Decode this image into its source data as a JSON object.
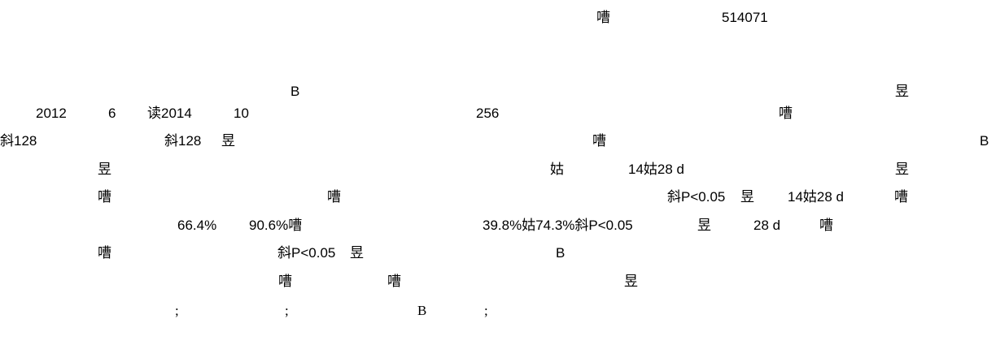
{
  "header": {
    "glyph": "嘈",
    "postcode": "514071"
  },
  "body_lines": [
    {
      "cells": [
        "B",
        "昱"
      ]
    },
    {
      "cells": [
        "2012",
        "6",
        "读2014",
        "10",
        "256",
        "嘈"
      ]
    },
    {
      "cells": [
        "斜128",
        "斜128",
        "昱",
        "嘈",
        "B"
      ]
    },
    {
      "cells": [
        "昱",
        "姑",
        "14姑28 d",
        "昱"
      ]
    },
    {
      "cells": [
        "嘈",
        "嘈",
        "斜P<0.05",
        "昱",
        "14姑28 d",
        "嘈"
      ]
    },
    {
      "cells": [
        "66.4%",
        "90.6%嘈",
        "39.8%姑74.3%斜P<0.05",
        "昱",
        "28 d",
        "嘈"
      ]
    },
    {
      "cells": [
        "嘈",
        "斜P<0.05",
        "昱",
        "B"
      ]
    },
    {
      "cells": [
        "嘈",
        "嘈",
        "昱"
      ]
    }
  ],
  "keywords_line": {
    "cells": [
      ";",
      ";",
      "B",
      ";"
    ]
  }
}
